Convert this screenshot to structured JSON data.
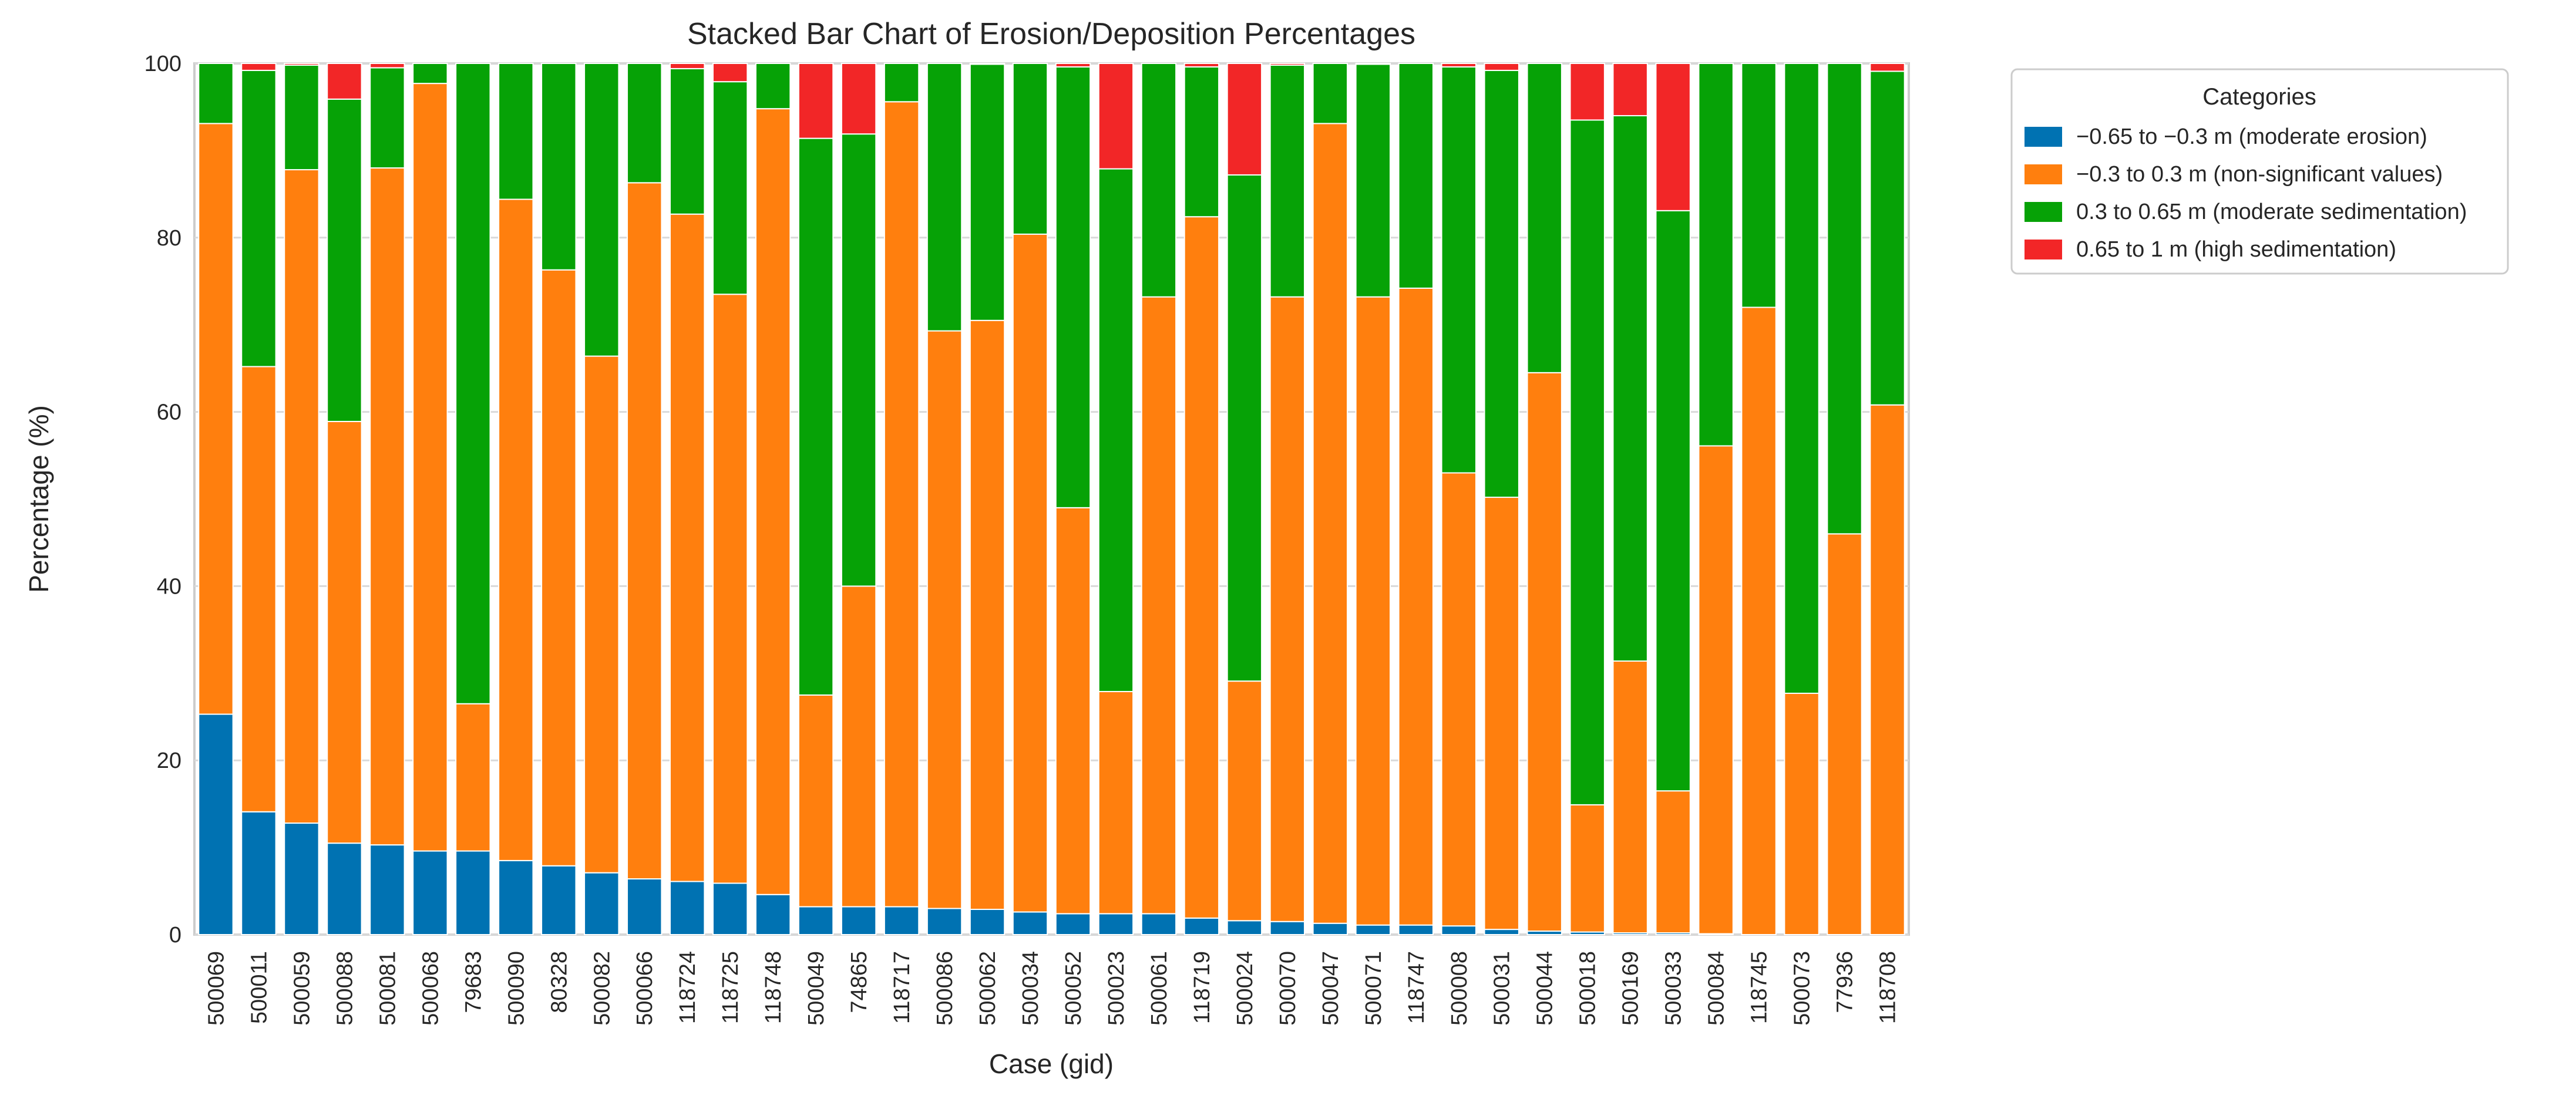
{
  "chart_data": {
    "type": "bar",
    "stacked": true,
    "title": "Stacked Bar Chart of Erosion/Deposition Percentages",
    "xlabel": "Case (gid)",
    "ylabel": "Percentage (%)",
    "ylim": [
      0,
      100
    ],
    "yticks": [
      0,
      20,
      40,
      60,
      80,
      100
    ],
    "grid": true,
    "legend": {
      "title": "Categories",
      "placement": "outside-top-right"
    },
    "categories": [
      "500069",
      "500011",
      "500059",
      "500088",
      "500081",
      "500068",
      "79683",
      "500090",
      "80328",
      "500082",
      "500066",
      "118724",
      "118725",
      "118748",
      "500049",
      "74865",
      "118717",
      "500086",
      "500062",
      "500034",
      "500052",
      "500023",
      "500061",
      "118719",
      "500024",
      "500070",
      "500047",
      "500071",
      "118747",
      "500008",
      "500031",
      "500044",
      "500018",
      "500169",
      "500033",
      "500084",
      "118745",
      "500073",
      "77936",
      "118708"
    ],
    "series": [
      {
        "name": "−0.65 to −0.3 m (moderate erosion)",
        "color": "#0072b2",
        "values": [
          25.3,
          14.1,
          12.8,
          10.5,
          10.3,
          9.6,
          9.6,
          8.5,
          7.9,
          7.1,
          6.4,
          6.1,
          5.9,
          4.6,
          3.2,
          3.2,
          3.2,
          3.0,
          2.9,
          2.6,
          2.4,
          2.4,
          2.4,
          1.9,
          1.6,
          1.5,
          1.3,
          1.1,
          1.1,
          1.0,
          0.6,
          0.4,
          0.3,
          0.2,
          0.2,
          0.1,
          0.0,
          0.0,
          0.0,
          0.0
        ]
      },
      {
        "name": "−0.3 to 0.3 m (non-significant values)",
        "color": "#ff7f0e",
        "values": [
          67.8,
          51.1,
          75.0,
          48.4,
          77.7,
          88.1,
          16.9,
          75.9,
          68.4,
          59.3,
          79.9,
          76.6,
          67.6,
          90.2,
          24.3,
          36.8,
          92.4,
          66.3,
          67.6,
          77.8,
          46.6,
          25.5,
          70.8,
          80.5,
          27.5,
          71.7,
          91.8,
          72.1,
          73.1,
          52.0,
          49.6,
          64.1,
          14.6,
          31.2,
          16.3,
          56.0,
          72.0,
          27.7,
          46.0,
          60.8
        ]
      },
      {
        "name": "0.3 to 0.65 m (moderate sedimentation)",
        "color": "#06a206",
        "values": [
          6.9,
          34.0,
          12.0,
          37.0,
          11.5,
          2.3,
          73.5,
          15.6,
          23.7,
          33.6,
          13.7,
          16.7,
          24.4,
          5.2,
          63.9,
          51.9,
          4.4,
          30.7,
          29.4,
          19.6,
          50.6,
          60.0,
          26.8,
          17.2,
          58.1,
          26.6,
          6.9,
          26.7,
          25.8,
          46.6,
          49.0,
          35.5,
          78.6,
          62.6,
          66.6,
          43.9,
          28.0,
          72.3,
          54.0,
          38.3
        ]
      },
      {
        "name": "0.65 to 1 m (high sedimentation)",
        "color": "#f22627",
        "values": [
          0.0,
          0.8,
          0.2,
          4.1,
          0.5,
          0.0,
          0.0,
          0.0,
          0.0,
          0.0,
          0.0,
          0.6,
          2.1,
          0.0,
          8.6,
          8.1,
          0.0,
          0.0,
          0.1,
          0.0,
          0.4,
          12.1,
          0.0,
          0.4,
          12.8,
          0.2,
          0.0,
          0.1,
          0.0,
          0.4,
          0.8,
          0.0,
          6.5,
          6.0,
          16.9,
          0.0,
          0.0,
          0.0,
          0.0,
          0.9
        ]
      }
    ]
  }
}
